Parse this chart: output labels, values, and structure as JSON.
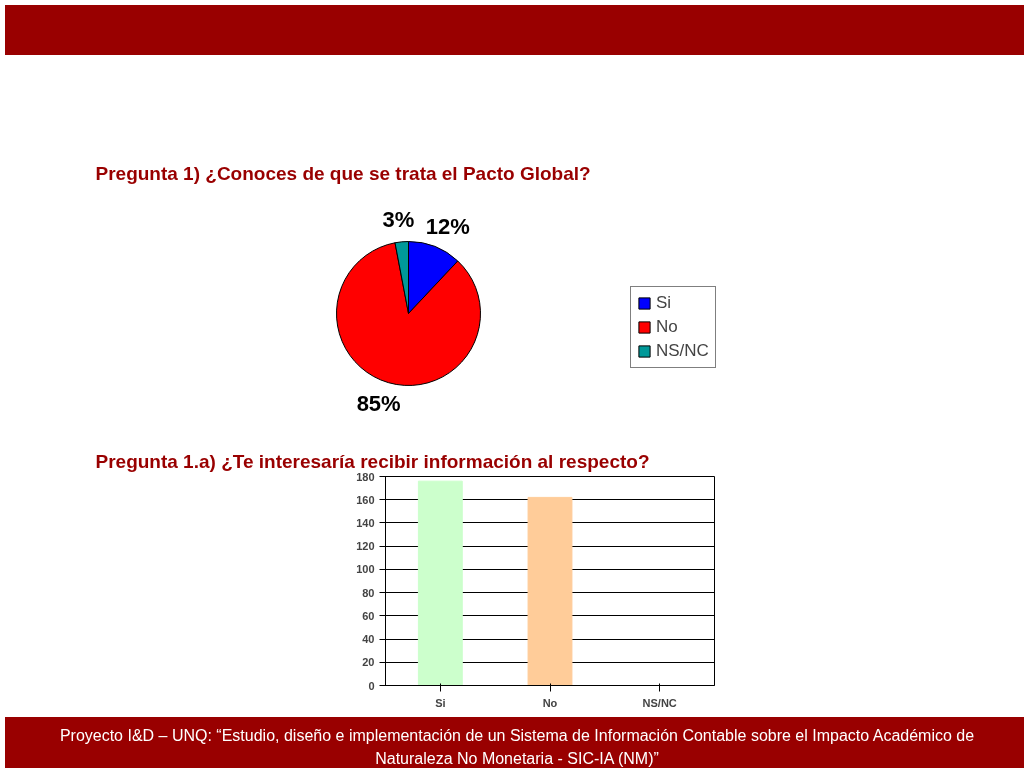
{
  "chart_data": [
    {
      "type": "pie",
      "title": "Pregunta 1) ¿Conoces de que se trata el Pacto Global?",
      "categories": [
        "Si",
        "No",
        "NS/NC"
      ],
      "values": [
        12,
        85,
        3
      ],
      "colors": [
        "#0000ff",
        "#ff0000",
        "#009999"
      ],
      "value_labels": [
        "12%",
        "85%",
        "3%"
      ],
      "legend": "right"
    },
    {
      "type": "bar",
      "title": "Pregunta 1.a) ¿Te interesaría recibir información al respecto?",
      "categories": [
        "Si",
        "No",
        "NS/NC"
      ],
      "values": [
        176,
        162,
        0
      ],
      "colors": [
        "#ccffcc",
        "#ffcc99",
        "#99cccc"
      ],
      "ylim": [
        0,
        180
      ],
      "yticks": [
        0,
        20,
        40,
        60,
        80,
        100,
        120,
        140,
        160,
        180
      ],
      "grid": "y",
      "annotations": [
        "Proyecto I&D – UNQ: “Estudio, diseño e implementación de un Sistema de Información Contable sobre el Impacto Académico de Naturaleza No Monetaria - SIC-IA (NM)”"
      ]
    }
  ]
}
